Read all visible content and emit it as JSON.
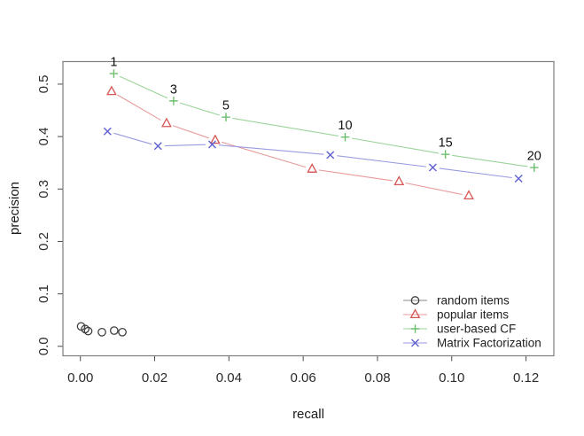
{
  "chart_data": {
    "type": "line",
    "title": "",
    "xlabel": "recall",
    "ylabel": "precision",
    "xlim": [
      -0.0047,
      0.1275
    ],
    "ylim": [
      -0.0181,
      0.543
    ],
    "grid": false,
    "box": true,
    "x_ticks": [
      0.0,
      0.02,
      0.04,
      0.06,
      0.08,
      0.1,
      0.12
    ],
    "x_tick_labels": [
      "0.00",
      "0.02",
      "0.04",
      "0.06",
      "0.08",
      "0.10",
      "0.12"
    ],
    "y_ticks": [
      0.0,
      0.1,
      0.2,
      0.3,
      0.4,
      0.5
    ],
    "y_tick_labels": [
      "0.0",
      "0.1",
      "0.2",
      "0.3",
      "0.4",
      "0.5"
    ],
    "series": [
      {
        "name": "random items",
        "marker": "circle",
        "marker_color": "#3f3f3f",
        "line_color": "#8a8a8a",
        "x": [
          0.0002,
          0.0013,
          0.0021,
          0.0058,
          0.0091,
          0.0113
        ],
        "y": [
          0.038,
          0.033,
          0.029,
          0.027,
          0.03,
          0.027
        ]
      },
      {
        "name": "popular items",
        "marker": "triangle",
        "marker_color": "#d75555",
        "line_color": "#e79a9a",
        "x": [
          0.0084,
          0.0232,
          0.0363,
          0.0624,
          0.0858,
          0.1046
        ],
        "y": [
          0.486,
          0.425,
          0.393,
          0.338,
          0.314,
          0.287
        ]
      },
      {
        "name": "user-based CF",
        "marker": "plus",
        "marker_color": "#6ebe6e",
        "line_color": "#9ad49a",
        "x": [
          0.009,
          0.0251,
          0.0392,
          0.0713,
          0.0983,
          0.1222
        ],
        "y": [
          0.52,
          0.468,
          0.437,
          0.399,
          0.366,
          0.341
        ]
      },
      {
        "name": "Matrix Factorization",
        "marker": "x",
        "marker_color": "#6060d2",
        "line_color": "#9a9ae1",
        "x": [
          0.0073,
          0.0209,
          0.0355,
          0.0673,
          0.0949,
          0.118
        ],
        "y": [
          0.41,
          0.382,
          0.385,
          0.365,
          0.341,
          0.32
        ]
      }
    ],
    "point_annotations": {
      "series_index": 2,
      "labels": [
        "1",
        "3",
        "5",
        "10",
        "15",
        "20"
      ]
    },
    "legend": {
      "position": "bottom-right-inside",
      "box": false,
      "entries": [
        "random items",
        "popular items",
        "user-based CF",
        "Matrix Factorization"
      ]
    }
  }
}
